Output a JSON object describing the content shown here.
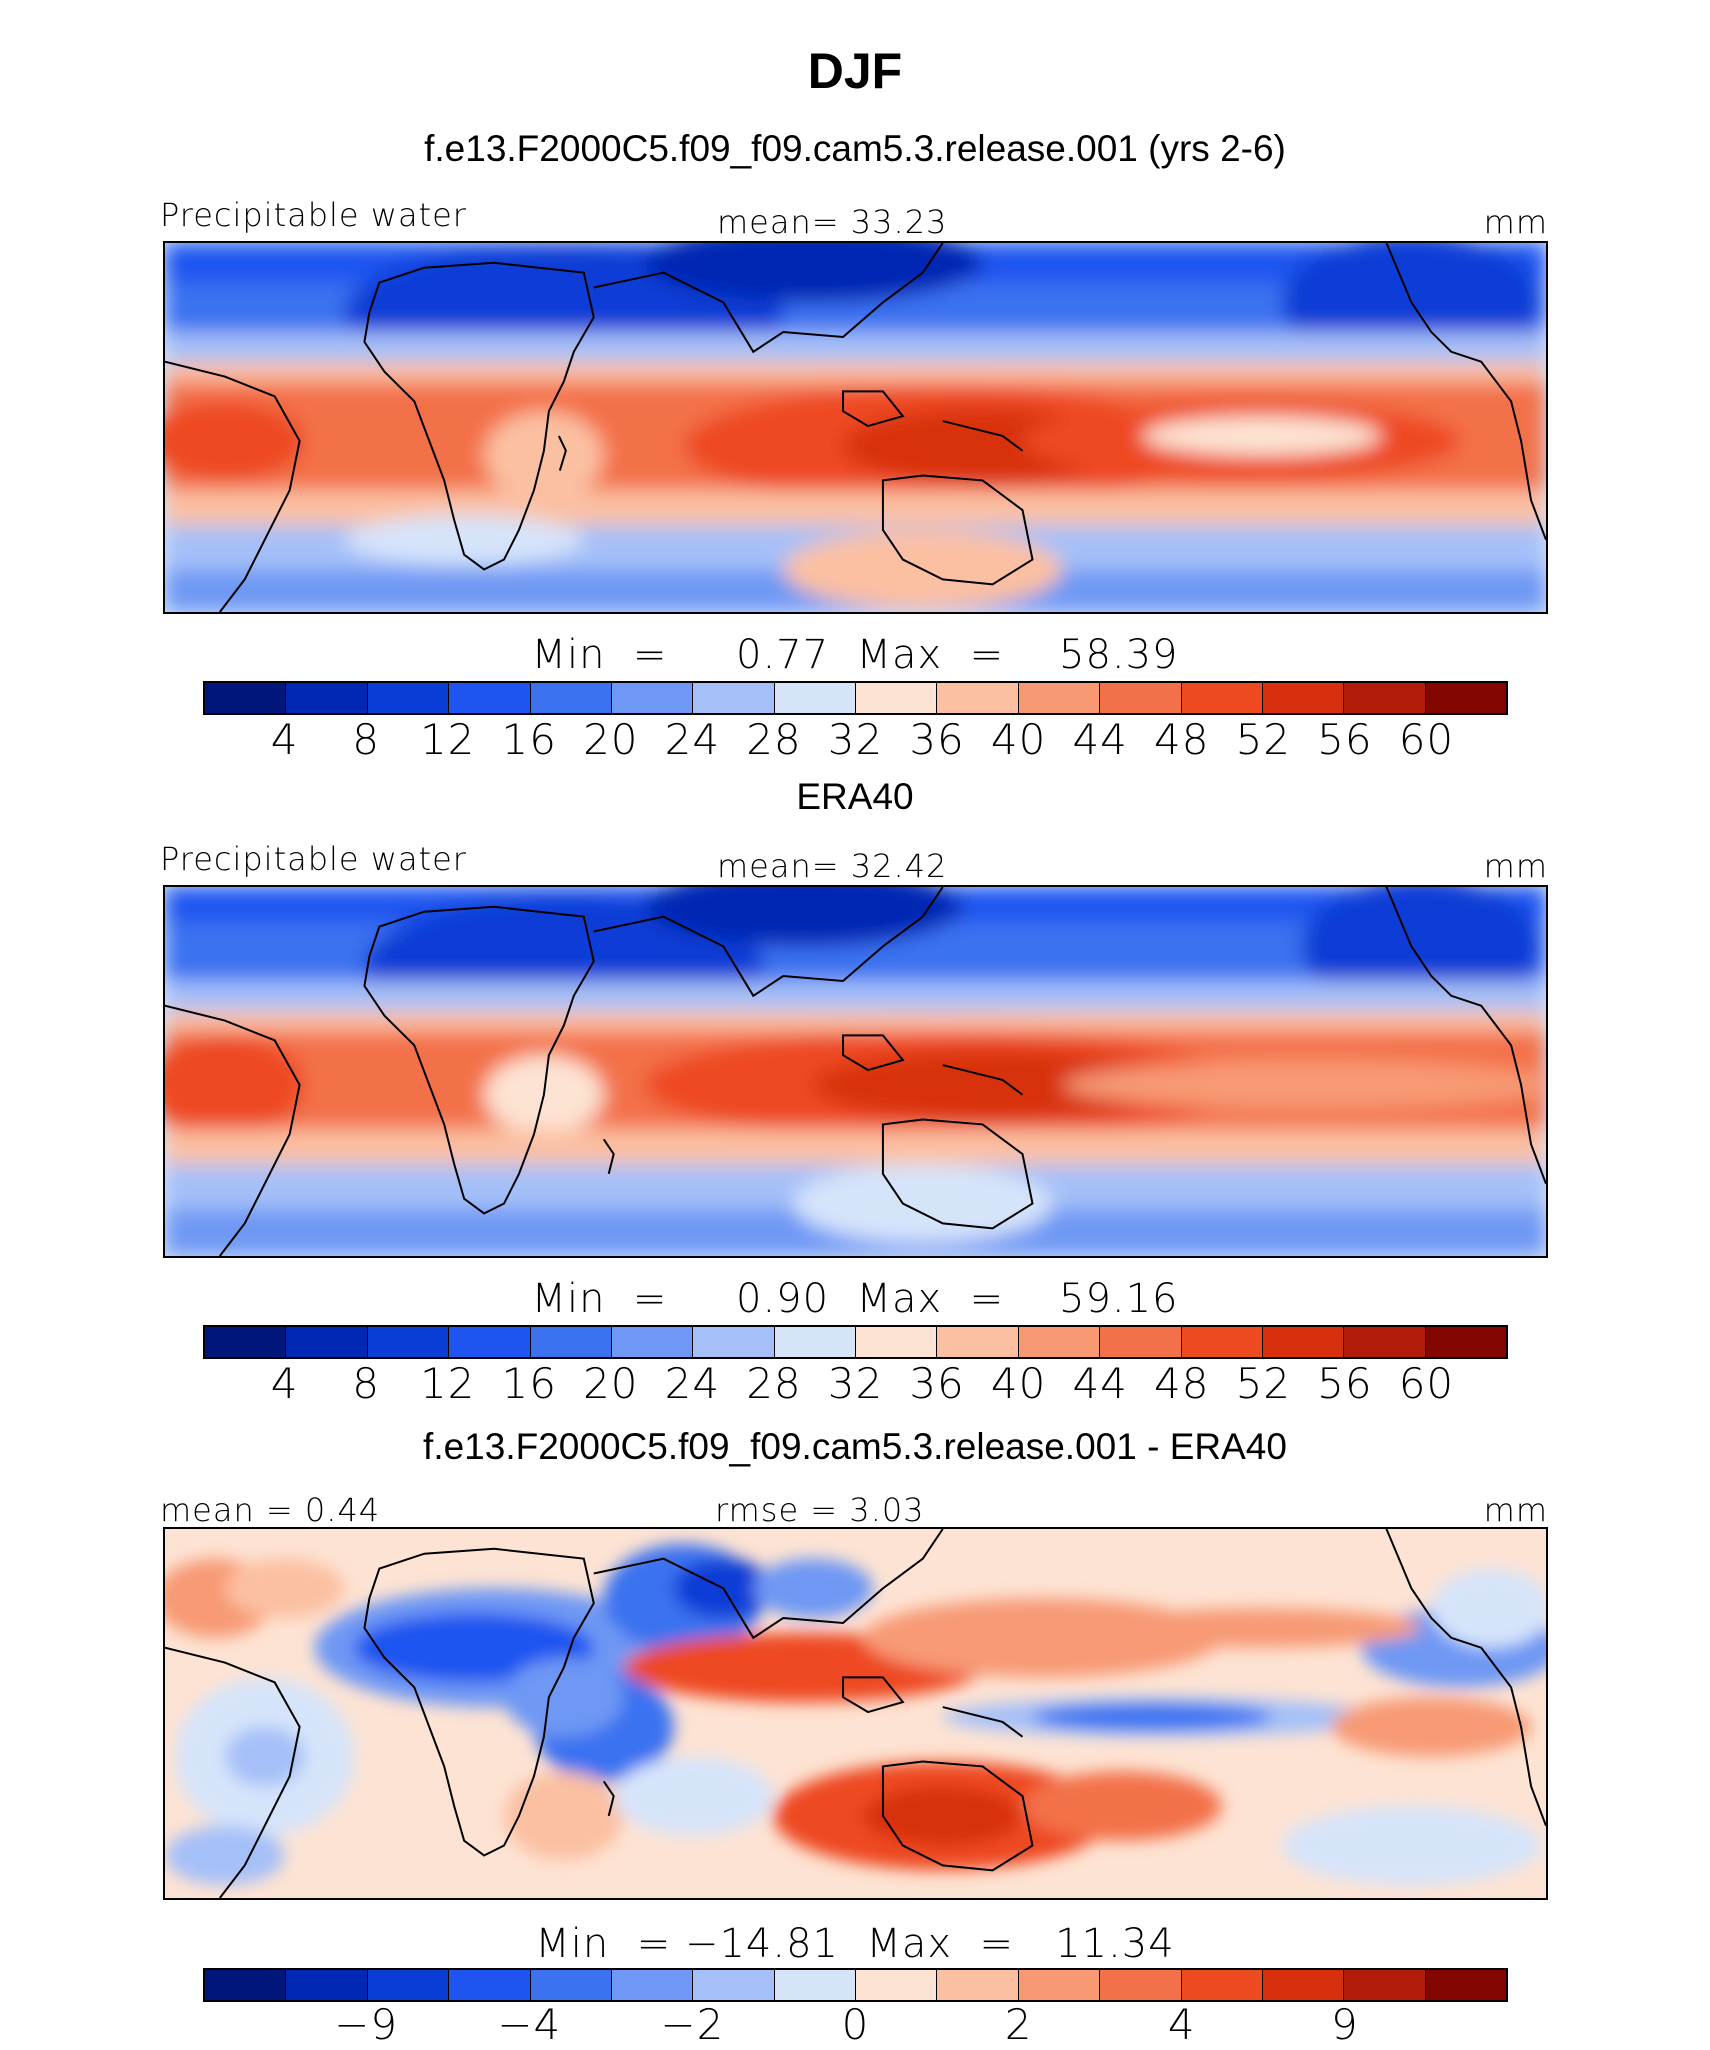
{
  "title": "DJF",
  "colors": {
    "main": [
      "#00167a",
      "#0028b4",
      "#0a3cd6",
      "#1e55f0",
      "#3a72f0",
      "#6e98f4",
      "#a5c0f8",
      "#d6e4fa",
      "#fde3d3",
      "#fbc0a2",
      "#f79a74",
      "#f3714a",
      "#ee4a22",
      "#d8300e",
      "#b11c08",
      "#830700"
    ],
    "diff": [
      "#00167a",
      "#0028b4",
      "#0a3cd6",
      "#1e55f0",
      "#3a72f0",
      "#6e98f4",
      "#a5c0f8",
      "#d6e4fa",
      "#fde3d3",
      "#fbc0a2",
      "#f79a74",
      "#f3714a",
      "#ee4a22",
      "#d8300e",
      "#b11c08",
      "#830700"
    ]
  },
  "panels": [
    {
      "heading": "f.e13.F2000C5.f09_f09.cam5.3.release.001 (yrs 2-6)",
      "left_label": "Precipitable water",
      "center_label": "mean=   33.23",
      "right_label": "mm",
      "minmax": "Min  =     0.77  Max  =    58.39",
      "ticks": [
        "4",
        "8",
        "12",
        "16",
        "20",
        "24",
        "28",
        "32",
        "36",
        "40",
        "44",
        "48",
        "52",
        "56",
        "60"
      ]
    },
    {
      "heading": "ERA40",
      "left_label": "Precipitable water",
      "center_label": "mean=   32.42",
      "right_label": "mm",
      "minmax": "Min  =     0.90  Max  =    59.16",
      "ticks": [
        "4",
        "8",
        "12",
        "16",
        "20",
        "24",
        "28",
        "32",
        "36",
        "40",
        "44",
        "48",
        "52",
        "56",
        "60"
      ]
    },
    {
      "heading": "f.e13.F2000C5.f09_f09.cam5.3.release.001 - ERA40",
      "left_label": "mean  =    0.44",
      "center_label": "rmse  =    3.03",
      "right_label": "mm",
      "minmax": "Min  = −14.81  Max  =   11.34",
      "ticks": [
        "−9",
        "−4",
        "−2",
        "0",
        "2",
        "4",
        "9"
      ]
    }
  ]
}
